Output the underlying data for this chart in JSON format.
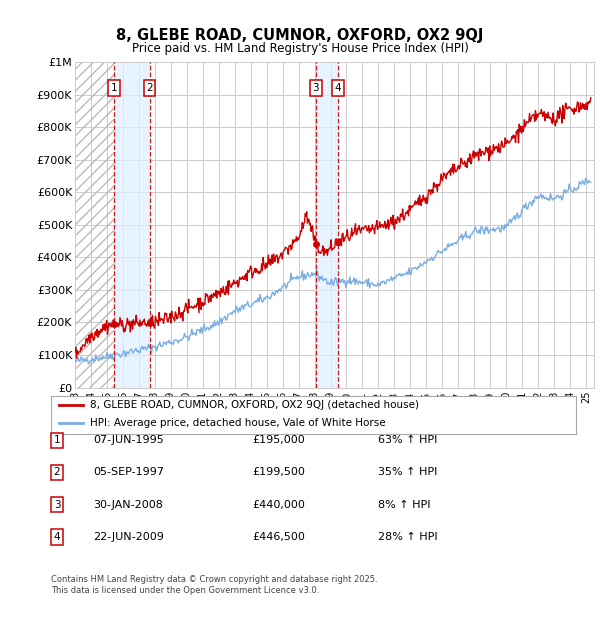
{
  "title": "8, GLEBE ROAD, CUMNOR, OXFORD, OX2 9QJ",
  "subtitle": "Price paid vs. HM Land Registry's House Price Index (HPI)",
  "ylim": [
    0,
    1000000
  ],
  "yticks": [
    0,
    100000,
    200000,
    300000,
    400000,
    500000,
    600000,
    700000,
    800000,
    900000,
    1000000
  ],
  "ytick_labels": [
    "£0",
    "£100K",
    "£200K",
    "£300K",
    "£400K",
    "£500K",
    "£600K",
    "£700K",
    "£800K",
    "£900K",
    "£1M"
  ],
  "xlim_start": 1993.0,
  "xlim_end": 2025.5,
  "transactions": [
    {
      "num": 1,
      "year": 1995.44,
      "price": 195000
    },
    {
      "num": 2,
      "year": 1997.67,
      "price": 199500
    },
    {
      "num": 3,
      "year": 2008.08,
      "price": 440000
    },
    {
      "num": 4,
      "year": 2009.47,
      "price": 446500
    }
  ],
  "legend_line1": "8, GLEBE ROAD, CUMNOR, OXFORD, OX2 9QJ (detached house)",
  "legend_line2": "HPI: Average price, detached house, Vale of White Horse",
  "footnote": "Contains HM Land Registry data © Crown copyright and database right 2025.\nThis data is licensed under the Open Government Licence v3.0.",
  "table": [
    {
      "num": 1,
      "date": "07-JUN-1995",
      "price": "£195,000",
      "pct": "63% ↑ HPI"
    },
    {
      "num": 2,
      "date": "05-SEP-1997",
      "price": "£199,500",
      "pct": "35% ↑ HPI"
    },
    {
      "num": 3,
      "date": "30-JAN-2008",
      "price": "£440,000",
      "pct": "8% ↑ HPI"
    },
    {
      "num": 4,
      "date": "22-JUN-2009",
      "price": "£446,500",
      "pct": "28% ↑ HPI"
    }
  ],
  "red_color": "#cc0000",
  "blue_color": "#7aade0",
  "shade_color": "#ddeeff",
  "background_color": "#ffffff",
  "grid_color": "#cccccc"
}
